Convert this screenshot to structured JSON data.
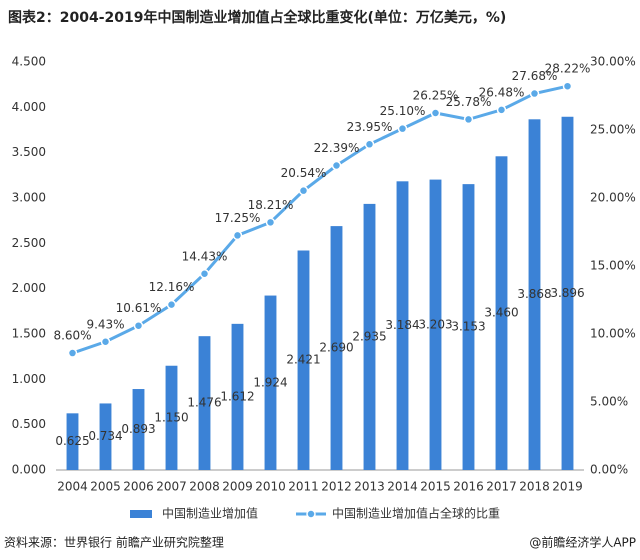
{
  "chart_data": {
    "type": "bar-line",
    "title": "图表2：2004-2019年中国制造业增加值占全球比重变化(单位：万亿美元，%)",
    "categories": [
      "2004",
      "2005",
      "2006",
      "2007",
      "2008",
      "2009",
      "2010",
      "2011",
      "2012",
      "2013",
      "2014",
      "2015",
      "2016",
      "2017",
      "2018",
      "2019"
    ],
    "series": [
      {
        "name": "中国制造业增加值",
        "type": "bar",
        "color": "#3b82d6",
        "values": [
          0.625,
          0.734,
          0.893,
          1.15,
          1.476,
          1.612,
          1.924,
          2.421,
          2.69,
          2.935,
          3.184,
          3.203,
          3.153,
          3.46,
          3.868,
          3.896
        ],
        "value_labels": [
          "0.625",
          "0.734",
          "0.893",
          "1.150",
          "1.476",
          "1.612",
          "1.924",
          "2.421",
          "2.690",
          "2.935",
          "3.184",
          "3.203",
          "3.153",
          "3.460",
          "3.868",
          "3.896"
        ]
      },
      {
        "name": "中国制造业增加值占全球的比重",
        "type": "line",
        "axis": "y2",
        "color": "#5aa9e8",
        "values": [
          8.6,
          9.43,
          10.61,
          12.16,
          14.43,
          17.25,
          18.21,
          20.54,
          22.39,
          23.95,
          25.1,
          26.25,
          25.78,
          26.48,
          27.68,
          28.22
        ],
        "value_labels": [
          "8.60%",
          "9.43%",
          "10.61%",
          "12.16%",
          "14.43%",
          "17.25%",
          "18.21%",
          "20.54%",
          "22.39%",
          "23.95%",
          "25.10%",
          "26.25%",
          "25.78%",
          "26.48%",
          "27.68%",
          "28.22%"
        ]
      }
    ],
    "ylim": [
      0,
      4.5
    ],
    "yticks": [
      {
        "value": 0,
        "label": "0.000"
      },
      {
        "value": 0.5,
        "label": "0.500"
      },
      {
        "value": 1,
        "label": "1.000"
      },
      {
        "value": 1.5,
        "label": "1.500"
      },
      {
        "value": 2,
        "label": "2.000"
      },
      {
        "value": 2.5,
        "label": "2.500"
      },
      {
        "value": 3,
        "label": "3.000"
      },
      {
        "value": 3.5,
        "label": "3.500"
      },
      {
        "value": 4,
        "label": "4.000"
      },
      {
        "value": 4.5,
        "label": "4.500"
      }
    ],
    "y2lim": [
      0,
      30
    ],
    "y2ticks": [
      {
        "value": 0,
        "label": "0.00%"
      },
      {
        "value": 5,
        "label": "5.00%"
      },
      {
        "value": 10,
        "label": "10.00%"
      },
      {
        "value": 15,
        "label": "15.00%"
      },
      {
        "value": 20,
        "label": "20.00%"
      },
      {
        "value": 25,
        "label": "25.00%"
      },
      {
        "value": 30,
        "label": "30.00%"
      }
    ],
    "grid": false
  },
  "footer": {
    "source": "资料来源：世界银行 前瞻产业研究院整理",
    "credit": "@前瞻经济学人APP"
  }
}
